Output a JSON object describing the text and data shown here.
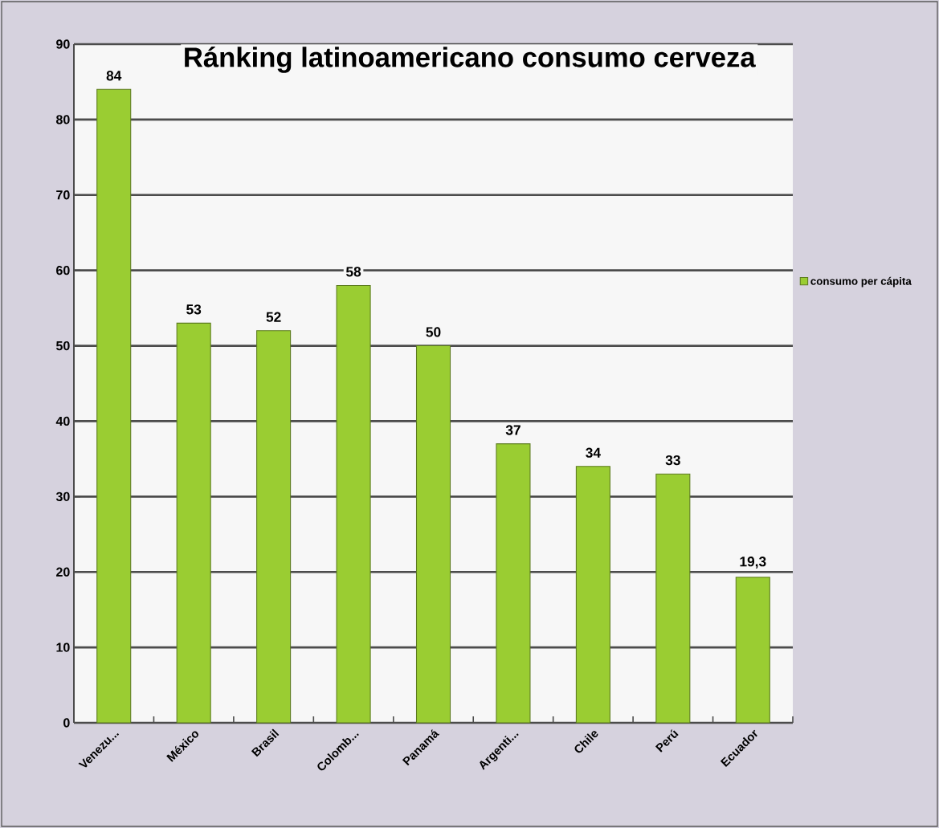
{
  "chart_data": {
    "type": "bar",
    "title": "Ránking latinoamericano consumo cerveza",
    "categories": [
      "Venezu...",
      "México",
      "Brasil",
      "Colomb...",
      "Panamá",
      "Argenti...",
      "Chile",
      "Perú",
      "Ecuador"
    ],
    "series": [
      {
        "name": "consumo per cápita",
        "color": "#9acd32",
        "values": [
          84,
          53,
          52,
          58,
          50,
          37,
          34,
          33,
          19.3
        ],
        "value_labels": [
          "84",
          "53",
          "52",
          "58",
          "50",
          "37",
          "34",
          "33",
          "19,3"
        ]
      }
    ],
    "ylim": [
      0,
      90
    ],
    "yticks": [
      0,
      10,
      20,
      30,
      40,
      50,
      60,
      70,
      80,
      90
    ],
    "grid": "y",
    "legend": "right"
  }
}
